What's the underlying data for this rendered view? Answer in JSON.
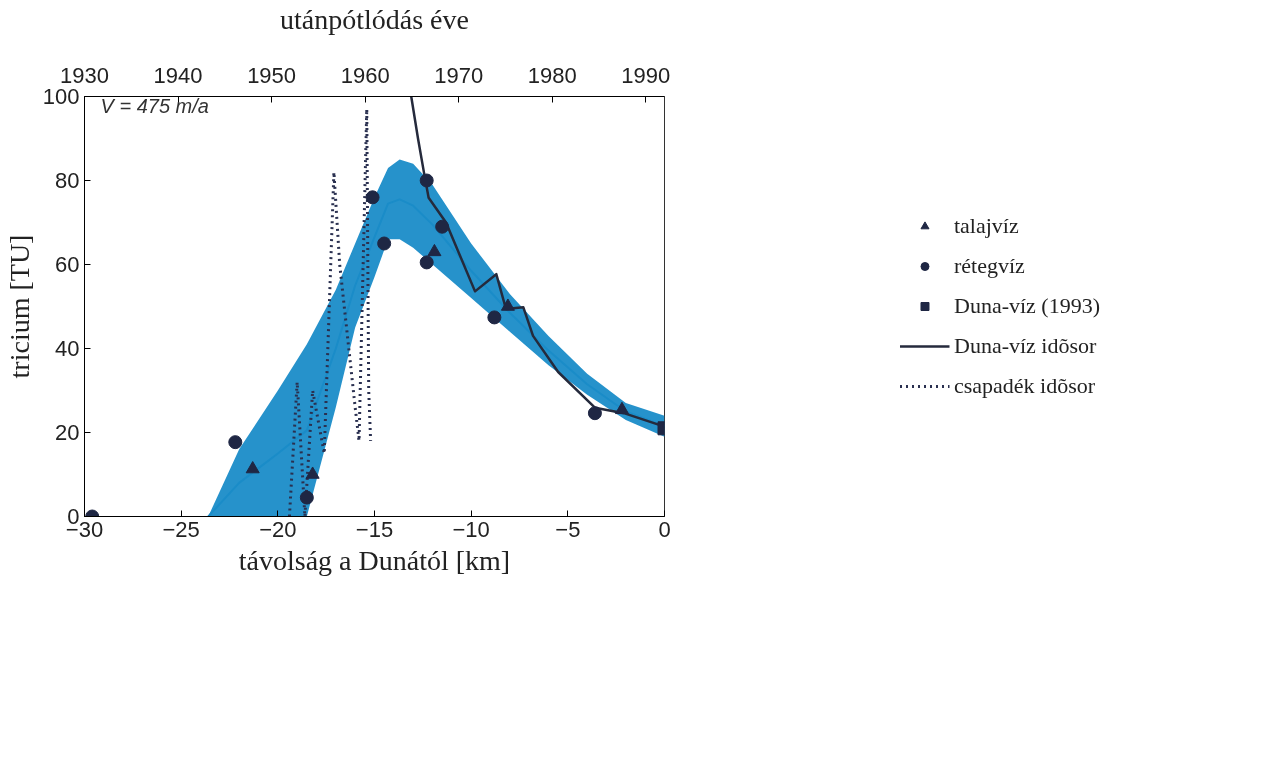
{
  "chart_data": {
    "type": "scatter",
    "xlabel": "távolság a Dunától [km]",
    "ylabel": "tricium [TU]",
    "x2label": "utánpótlódás éve",
    "xlim": [
      -30,
      0
    ],
    "xticks": [
      -30,
      -25,
      -20,
      -15,
      -10,
      -5,
      0
    ],
    "ylim": [
      0,
      100
    ],
    "yticks": [
      0,
      20,
      40,
      60,
      80,
      100
    ],
    "x2lim": [
      1930,
      1992
    ],
    "x2ticks": [
      1930,
      1940,
      1950,
      1960,
      1970,
      1980,
      1990
    ],
    "grid": false,
    "legend": "right",
    "annotations": [
      "V = 475 m/a"
    ],
    "series": [
      {
        "type": "line",
        "line_style": "solid",
        "color": "#1a8cc8",
        "x": [
          -23.6,
          -22,
          -20,
          -18.5,
          -17,
          -16,
          -15,
          -14.3,
          -13.7,
          -13,
          -12,
          -10,
          -8,
          -6,
          -4,
          -2,
          0
        ],
        "values": [
          0,
          8,
          15,
          20.5,
          40,
          55,
          66.5,
          74.5,
          75.5,
          74,
          69.5,
          58.5,
          48.5,
          39.5,
          31.5,
          25,
          21.5
        ],
        "upper": [
          0,
          16,
          30,
          41,
          54,
          65,
          76,
          83,
          85,
          84,
          79,
          65,
          53,
          43,
          34,
          27,
          24
        ],
        "lower": [
          0,
          0,
          0,
          0,
          26,
          45,
          57,
          66,
          66,
          64,
          60,
          52,
          44,
          36,
          29,
          23,
          19
        ]
      },
      {
        "type": "line",
        "line_style": "dotted",
        "name": "csapadék idõsor",
        "color": "#2a3050",
        "x": [
          -19.4,
          -19.0,
          -18.6,
          -18.2,
          -17.6,
          -17.1,
          -16.8,
          -16.0,
          -15.8,
          -15.4,
          -15.3,
          -15.2
        ],
        "values": [
          0,
          32,
          0,
          30,
          15,
          82,
          60,
          26,
          18,
          97,
          30,
          18
        ]
      },
      {
        "type": "line",
        "line_style": "solid",
        "name": "Duna-víz idõsor",
        "color": "#252a3c",
        "x": [
          -13.1,
          -12.75,
          -12.4,
          -12.2,
          -11.3,
          -9.8,
          -8.7,
          -8.2,
          -7.3,
          -6.8,
          -5.5,
          -3.6,
          -2.1,
          0
        ],
        "values": [
          100,
          90,
          80.8,
          75.9,
          70,
          53.6,
          57.7,
          49.4,
          49.8,
          43,
          34.4,
          25.9,
          24.6,
          21.4
        ]
      },
      {
        "marker": "triangle",
        "name": "talajvíz",
        "color": "#1f2744",
        "x": [
          -21.3,
          -18.2,
          -11.9,
          -8.1,
          -2.2
        ],
        "values": [
          11.3,
          10,
          63,
          50,
          25.4
        ]
      },
      {
        "marker": "circle",
        "name": "rétegvíz",
        "color": "#1f2744",
        "x": [
          -29.6,
          -22.2,
          -18.5,
          -15.1,
          -14.5,
          -12.3,
          -11.5,
          -12.3,
          -8.8,
          -3.6
        ],
        "values": [
          0,
          17.7,
          4.5,
          76,
          65,
          80,
          69,
          60.5,
          47.4,
          24.6
        ]
      },
      {
        "marker": "square",
        "name": "Duna-víz (1993)",
        "color": "#1f2744",
        "x": [
          0
        ],
        "values": [
          21
        ]
      }
    ]
  }
}
